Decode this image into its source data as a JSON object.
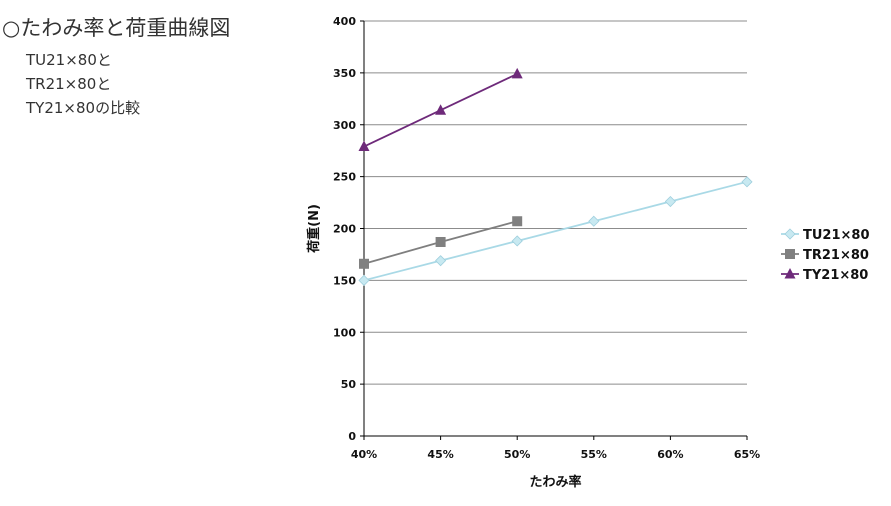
{
  "header": {
    "title": "○たわみ率と荷重曲線図",
    "subtitle_lines": [
      "TU21×80と",
      "TR21×80と",
      "TY21×80の比較"
    ]
  },
  "chart_data": {
    "type": "line",
    "xlabel": "たわみ率",
    "ylabel": "荷重(N)",
    "categories": [
      "40%",
      "45%",
      "50%",
      "55%",
      "60%",
      "65%"
    ],
    "yticks": [
      "0",
      "50",
      "100",
      "150",
      "200",
      "250",
      "300",
      "350",
      "400"
    ],
    "ylim": [
      0,
      400
    ],
    "grid": "horizontal",
    "legend_position": "right",
    "series": [
      {
        "name": "TU21×80",
        "marker": "diamond",
        "color": "#a9d9e6",
        "marker_color": "#c8e9f1",
        "values": [
          150,
          169,
          188,
          207,
          226,
          245
        ]
      },
      {
        "name": "TR21×80",
        "marker": "square",
        "color": "#7f7f7f",
        "marker_color": "#808080",
        "values": [
          166,
          187,
          207,
          null,
          null,
          null
        ]
      },
      {
        "name": "TY21×80",
        "marker": "triangle",
        "color": "#6e2a7a",
        "marker_color": "#6e2a7a",
        "values": [
          279,
          314,
          349,
          null,
          null,
          null
        ]
      }
    ]
  }
}
